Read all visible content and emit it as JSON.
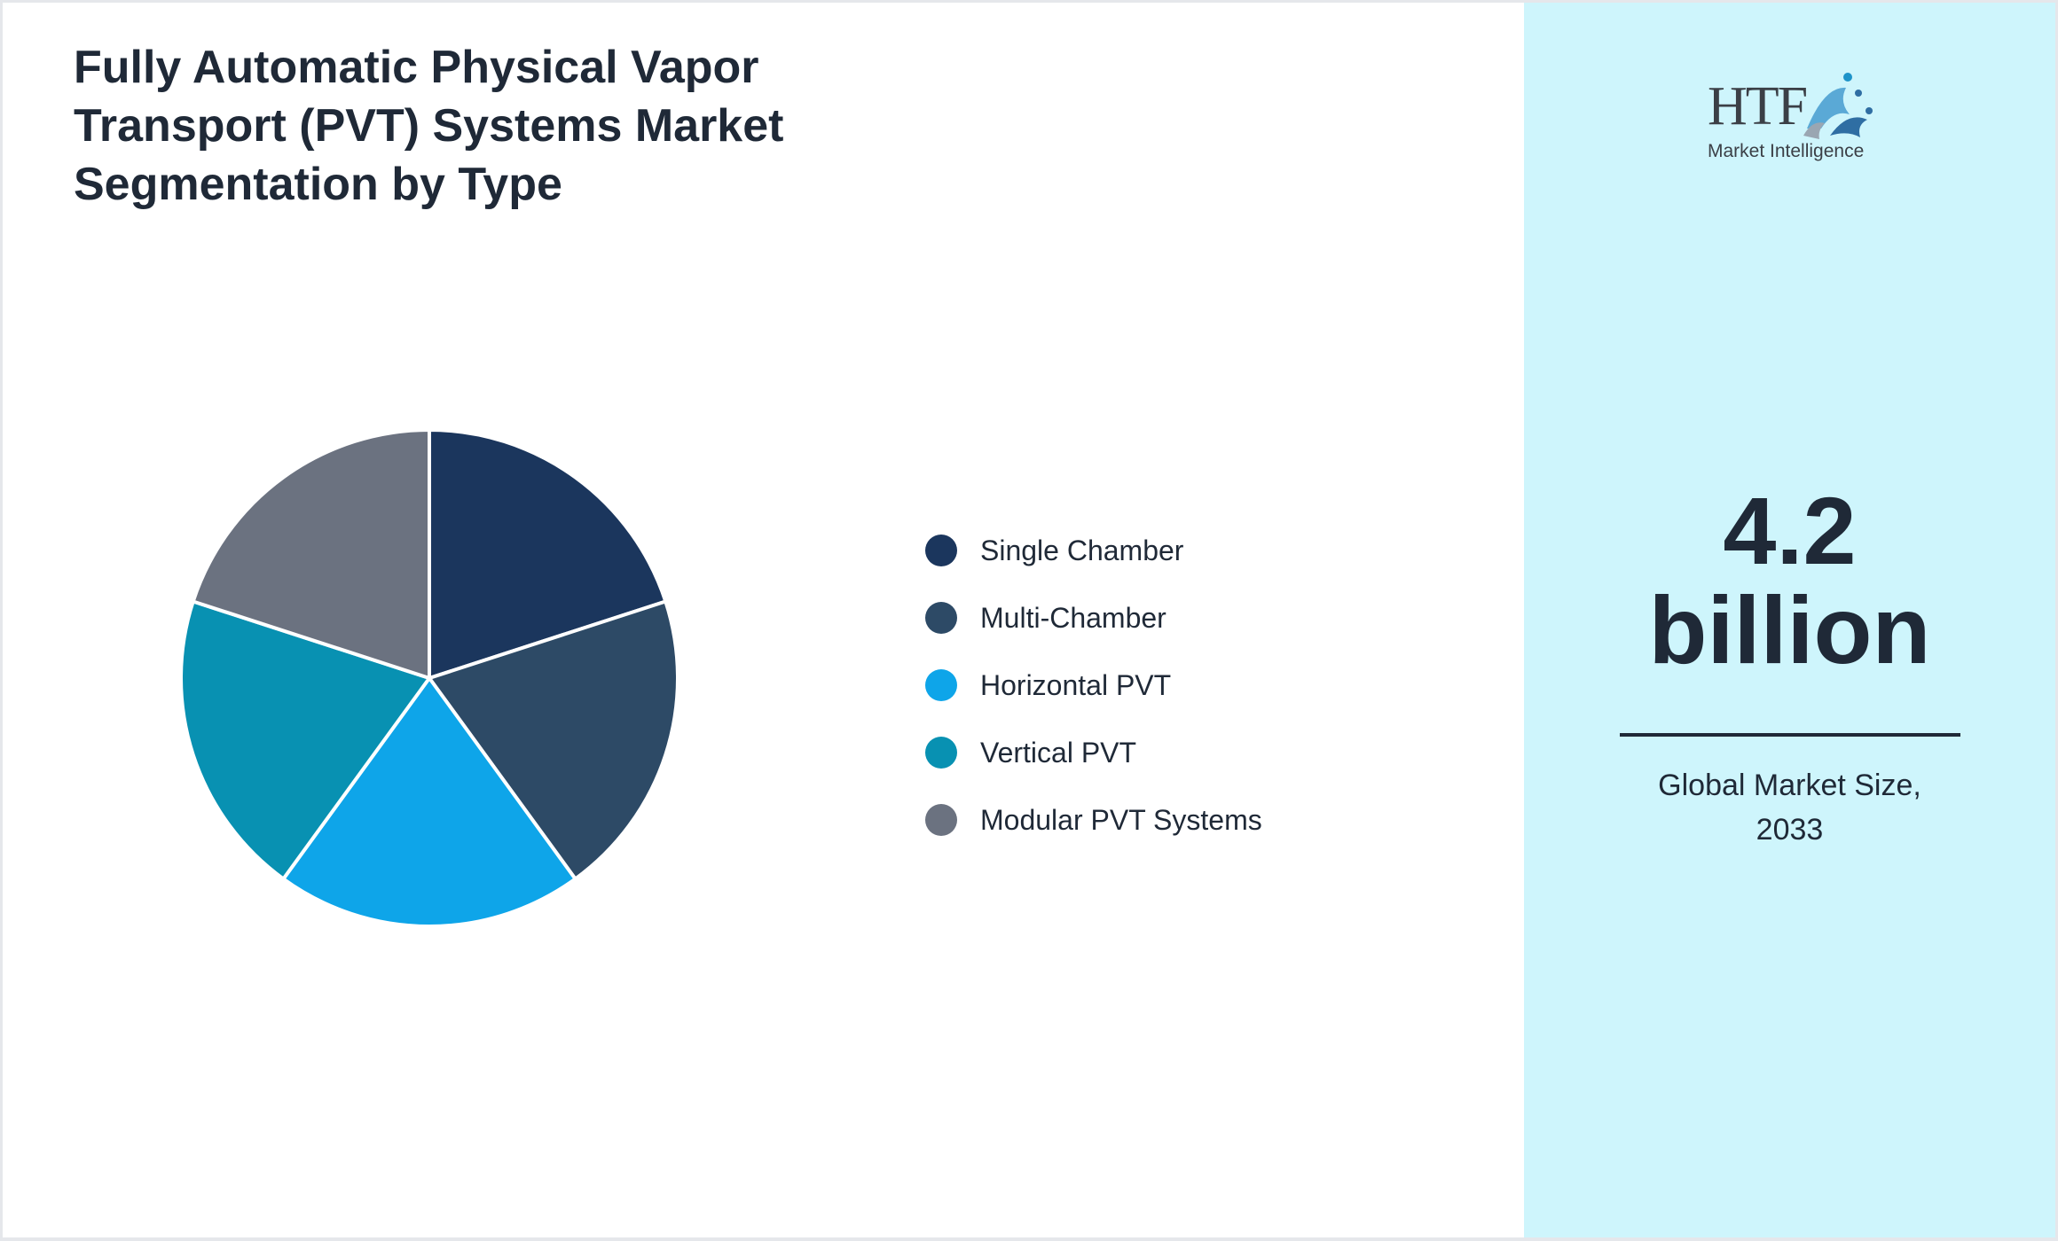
{
  "chart_data": {
    "type": "pie",
    "title": "Fully Automatic Physical Vapor Transport (PVT) Systems Market Segmentation by Type",
    "categories": [
      "Single Chamber",
      "Multi-Chamber",
      "Horizontal PVT",
      "Vertical PVT",
      "Modular PVT Systems"
    ],
    "values": [
      20,
      20,
      20,
      20,
      20
    ],
    "colors": [
      "#1b365d",
      "#2d4a66",
      "#0ea5e9",
      "#0891b2",
      "#6b7280"
    ],
    "legend_position": "right"
  },
  "market": {
    "value_line1": "4.2",
    "value_line2": "billion",
    "caption_line1": "Global Market Size,",
    "caption_line2": "2033"
  },
  "logo": {
    "letters": "HTF",
    "subtitle": "Market Intelligence"
  }
}
